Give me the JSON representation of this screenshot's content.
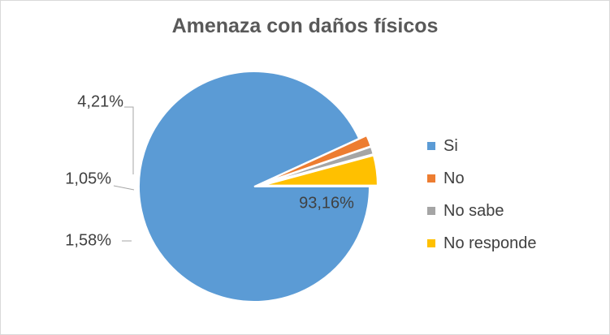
{
  "chart_data": {
    "type": "pie",
    "title": "Amenaza con daños físicos",
    "categories": [
      "Si",
      "No",
      "No sabe",
      "No responde"
    ],
    "values": [
      93.16,
      1.58,
      1.05,
      4.21
    ],
    "labels": [
      "93,16%",
      "1,58%",
      "1,05%",
      "4,21%"
    ],
    "colors": [
      "#5b9bd5",
      "#ed7d31",
      "#a5a5a5",
      "#ffc000"
    ],
    "legend": "right",
    "start_angle_deg": 0,
    "direction": "clockwise",
    "exploded": [
      "No",
      "No sabe",
      "No responde"
    ]
  }
}
